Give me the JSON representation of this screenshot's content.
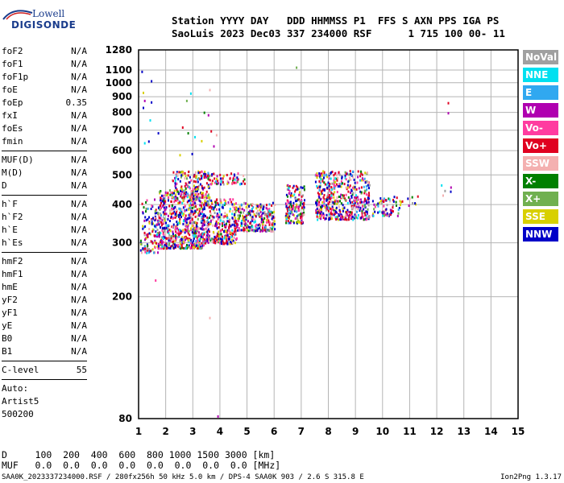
{
  "logo": {
    "line1": "Lowell",
    "line2": "DIGISONDE"
  },
  "header": {
    "line1": "Station YYYY DAY   DDD HHMMSS P1  FFS S AXN PPS IGA PS",
    "line2": "SaoLuis 2023 Dec03 337 234000 RSF      1 715 100 00- 11"
  },
  "params": {
    "group1": [
      {
        "name": "foF2",
        "value": "N/A"
      },
      {
        "name": "foF1",
        "value": "N/A"
      },
      {
        "name": "foF1p",
        "value": "N/A"
      },
      {
        "name": "foE",
        "value": "N/A"
      },
      {
        "name": "foEp",
        "value": "0.35"
      },
      {
        "name": "fxI",
        "value": "N/A"
      },
      {
        "name": "foEs",
        "value": "N/A"
      },
      {
        "name": "fmin",
        "value": "N/A"
      }
    ],
    "group2": [
      {
        "name": "MUF(D)",
        "value": "N/A"
      },
      {
        "name": "M(D)",
        "value": "N/A"
      },
      {
        "name": "D",
        "value": "N/A"
      }
    ],
    "group3": [
      {
        "name": "h`F",
        "value": "N/A"
      },
      {
        "name": "h`F2",
        "value": "N/A"
      },
      {
        "name": "h`E",
        "value": "N/A"
      },
      {
        "name": "h`Es",
        "value": "N/A"
      }
    ],
    "group4": [
      {
        "name": "hmF2",
        "value": "N/A"
      },
      {
        "name": "hmF1",
        "value": "N/A"
      },
      {
        "name": "hmE",
        "value": "N/A"
      },
      {
        "name": "yF2",
        "value": "N/A"
      },
      {
        "name": "yF1",
        "value": "N/A"
      },
      {
        "name": "yE",
        "value": "N/A"
      },
      {
        "name": "B0",
        "value": "N/A"
      },
      {
        "name": "B1",
        "value": "N/A"
      }
    ],
    "clevel": {
      "name": "C-level",
      "value": "55"
    },
    "auto": [
      "Auto:",
      "Artist5",
      "500200"
    ]
  },
  "dtable": {
    "line1": "D     100  200  400  600  800 1000 1500 3000 [km]",
    "line2": "MUF   0.0  0.0  0.0  0.0  0.0  0.0  0.0  0.0 [MHz]"
  },
  "footer": {
    "left": "SAA0K_2023337234000.RSF / 280fx256h 50 kHz 5.0 km / DPS-4 SAA0K 903 / 2.6 S 315.8 E",
    "right": "Ion2Png 1.3.17"
  },
  "colors": {
    "NoVal": "#a0a0a0",
    "NNE": "#00e0f0",
    "E": "#30a8f0",
    "W": "#b000b0",
    "Vo-": "#ff3ca0",
    "Vo+": "#e00020",
    "SSW": "#f4b0b0",
    "X-": "#008000",
    "X+": "#70b050",
    "SSE": "#d8d000",
    "NNW": "#0000c8"
  },
  "chart_data": {
    "type": "scatter",
    "x_ticks": [
      1,
      2,
      3,
      4,
      5,
      6,
      7,
      8,
      9,
      10,
      11,
      12,
      13,
      14,
      15
    ],
    "y_ticks": [
      80,
      200,
      300,
      400,
      500,
      600,
      700,
      800,
      900,
      1000,
      1100,
      1280
    ],
    "xlim": [
      1,
      15
    ],
    "ylim": [
      80,
      1280
    ],
    "y_scale": "log",
    "grid": true,
    "legend_placement": "right",
    "legend": [
      "NoVal",
      "NNE",
      "E",
      "W",
      "Vo-",
      "Vo+",
      "SSW",
      "X-",
      "X+",
      "SSE",
      "NNW"
    ],
    "clusters": [
      {
        "xmin": 1.05,
        "xmax": 1.7,
        "ymin": 280,
        "ymax": 420,
        "n": 120
      },
      {
        "xmin": 1.7,
        "xmax": 3.4,
        "ymin": 290,
        "ymax": 450,
        "n": 650
      },
      {
        "xmin": 2.2,
        "xmax": 3.6,
        "ymin": 420,
        "ymax": 520,
        "n": 160
      },
      {
        "xmin": 3.3,
        "xmax": 4.6,
        "ymin": 300,
        "ymax": 420,
        "n": 320
      },
      {
        "xmin": 3.6,
        "xmax": 4.9,
        "ymin": 470,
        "ymax": 510,
        "n": 60
      },
      {
        "xmin": 4.5,
        "xmax": 6.0,
        "ymin": 330,
        "ymax": 410,
        "n": 280
      },
      {
        "xmin": 6.4,
        "xmax": 7.1,
        "ymin": 350,
        "ymax": 470,
        "n": 160
      },
      {
        "xmin": 7.5,
        "xmax": 9.5,
        "ymin": 360,
        "ymax": 520,
        "n": 520
      },
      {
        "xmin": 9.6,
        "xmax": 10.6,
        "ymin": 370,
        "ymax": 430,
        "n": 70
      },
      {
        "xmin": 10.6,
        "xmax": 11.3,
        "ymin": 400,
        "ymax": 430,
        "n": 12
      },
      {
        "xmin": 12.1,
        "xmax": 12.5,
        "ymin": 430,
        "ymax": 470,
        "n": 5
      }
    ],
    "outliers": [
      {
        "x": 1.1,
        "y": 1095,
        "c": "NNW"
      },
      {
        "x": 1.45,
        "y": 1020,
        "c": "NNW"
      },
      {
        "x": 1.15,
        "y": 935,
        "c": "SSE"
      },
      {
        "x": 1.2,
        "y": 880,
        "c": "W"
      },
      {
        "x": 1.45,
        "y": 870,
        "c": "NNW"
      },
      {
        "x": 1.15,
        "y": 835,
        "c": "NNW"
      },
      {
        "x": 1.4,
        "y": 760,
        "c": "NNE"
      },
      {
        "x": 1.7,
        "y": 690,
        "c": "NNW"
      },
      {
        "x": 1.35,
        "y": 648,
        "c": "NNW"
      },
      {
        "x": 1.2,
        "y": 640,
        "c": "NNE"
      },
      {
        "x": 2.9,
        "y": 930,
        "c": "NNE"
      },
      {
        "x": 2.75,
        "y": 880,
        "c": "X+"
      },
      {
        "x": 3.6,
        "y": 955,
        "c": "SSW"
      },
      {
        "x": 3.4,
        "y": 805,
        "c": "X-"
      },
      {
        "x": 3.55,
        "y": 790,
        "c": "W"
      },
      {
        "x": 2.6,
        "y": 720,
        "c": "Vo+"
      },
      {
        "x": 2.8,
        "y": 690,
        "c": "X-"
      },
      {
        "x": 3.05,
        "y": 670,
        "c": "NNE"
      },
      {
        "x": 3.65,
        "y": 700,
        "c": "Vo+"
      },
      {
        "x": 3.3,
        "y": 650,
        "c": "SSE"
      },
      {
        "x": 3.85,
        "y": 680,
        "c": "SSW"
      },
      {
        "x": 2.5,
        "y": 585,
        "c": "SSE"
      },
      {
        "x": 2.95,
        "y": 590,
        "c": "NNW"
      },
      {
        "x": 3.75,
        "y": 625,
        "c": "W"
      },
      {
        "x": 6.8,
        "y": 1130,
        "c": "X+"
      },
      {
        "x": 12.4,
        "y": 865,
        "c": "Vo+"
      },
      {
        "x": 12.4,
        "y": 802,
        "c": "W"
      },
      {
        "x": 3.6,
        "y": 172,
        "c": "SSW"
      },
      {
        "x": 1.6,
        "y": 228,
        "c": "Vo-"
      },
      {
        "x": 3.9,
        "y": 82,
        "c": "W"
      },
      {
        "x": 3.5,
        "y": 355,
        "c": "NoVal"
      }
    ]
  }
}
